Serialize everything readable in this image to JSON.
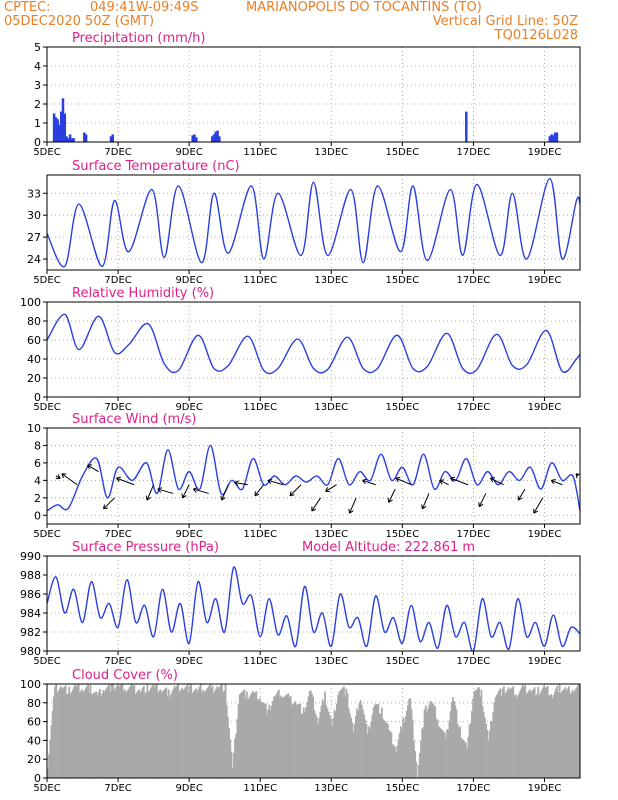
{
  "header": {
    "line1_left": "CPTEC:",
    "coords": "049:41W-09:49S",
    "location": "MARIANOPOLIS DO TOCANTINS (TO)",
    "date": "05DEC2020 50Z (GMT)",
    "grid_note": "Vertical Grid Line: 50Z",
    "run_code": "TQ0126L028"
  },
  "x_ticks": [
    "5DEC",
    "7DEC",
    "9DEC",
    "11DEC",
    "13DEC",
    "15DEC",
    "17DEC",
    "19DEC"
  ],
  "x_tick_days": [
    0,
    2,
    4,
    6,
    8,
    10,
    12,
    14
  ],
  "x_range_days": [
    0,
    15
  ],
  "colors": {
    "line": "#2a3fe0",
    "bar": "#2a3fe0",
    "cloud": "#a9a9a9",
    "arrow": "#000000",
    "title": "#e0208a",
    "header": "#e8802a"
  },
  "chart_data": [
    {
      "type": "bar",
      "title": "Precipitation (mm/h)",
      "ylim": [
        0,
        5
      ],
      "yticks": [
        0,
        1,
        2,
        3,
        4,
        5
      ],
      "grid": true,
      "x_days": [
        0.2,
        0.25,
        0.3,
        0.35,
        0.4,
        0.45,
        0.5,
        0.55,
        0.6,
        0.65,
        0.7,
        0.75,
        1.05,
        1.1,
        1.8,
        1.85,
        4.1,
        4.15,
        4.2,
        4.65,
        4.7,
        4.75,
        4.8,
        4.85,
        11.8,
        14.15,
        14.2,
        14.25,
        14.3,
        14.35
      ],
      "values": [
        1.5,
        1.3,
        1.2,
        0.9,
        1.6,
        2.3,
        1.5,
        0.3,
        0.2,
        0.4,
        0.2,
        0.2,
        0.5,
        0.4,
        0.3,
        0.4,
        0.35,
        0.4,
        0.25,
        0.3,
        0.4,
        0.55,
        0.6,
        0.3,
        1.6,
        0.3,
        0.4,
        0.35,
        0.5,
        0.5
      ]
    },
    {
      "type": "line",
      "title": "Surface Temperature (nC)",
      "ylim": [
        22.5,
        35.5
      ],
      "yticks": [
        24,
        27,
        30,
        33
      ],
      "grid": true,
      "x": [
        0.0,
        0.5,
        0.9,
        1.55,
        1.9,
        2.3,
        2.95,
        3.3,
        3.7,
        4.35,
        4.7,
        5.1,
        5.75,
        6.1,
        6.5,
        7.15,
        7.5,
        7.9,
        8.55,
        8.9,
        9.3,
        9.95,
        10.3,
        10.7,
        11.35,
        11.7,
        12.1,
        12.75,
        13.1,
        13.5,
        14.15,
        14.5,
        14.9,
        15.0
      ],
      "y": [
        27.5,
        23.0,
        31.5,
        23.0,
        32.0,
        25.0,
        33.5,
        24.2,
        34.0,
        23.5,
        33.0,
        24.8,
        34.0,
        24.0,
        33.0,
        24.5,
        34.5,
        24.5,
        33.5,
        23.5,
        34.0,
        25.0,
        34.0,
        23.8,
        33.5,
        24.5,
        34.2,
        24.5,
        33.0,
        24.0,
        35.0,
        24.0,
        32.0,
        31.5
      ]
    },
    {
      "type": "line",
      "title": "Relative Humidity (%)",
      "ylim": [
        0,
        100
      ],
      "yticks": [
        0,
        20,
        40,
        60,
        80,
        100
      ],
      "grid": true,
      "x": [
        0.0,
        0.5,
        0.9,
        1.45,
        1.9,
        2.3,
        2.85,
        3.3,
        3.7,
        4.25,
        4.7,
        5.1,
        5.65,
        6.1,
        6.5,
        7.05,
        7.5,
        7.9,
        8.45,
        8.9,
        9.3,
        9.85,
        10.3,
        10.7,
        11.25,
        11.7,
        12.1,
        12.65,
        13.1,
        13.5,
        14.05,
        14.5,
        14.9,
        15.0
      ],
      "y": [
        60,
        87,
        50,
        85,
        47,
        55,
        77,
        35,
        28,
        65,
        30,
        33,
        64,
        28,
        30,
        61,
        30,
        29,
        63,
        30,
        30,
        65,
        30,
        32,
        67,
        30,
        29,
        66,
        33,
        34,
        70,
        27,
        40,
        45
      ]
    },
    {
      "type": "line",
      "title": "Surface Wind (m/s)",
      "ylim": [
        -1,
        10
      ],
      "yticks": [
        0,
        2,
        4,
        6,
        8,
        10
      ],
      "grid": true,
      "x": [
        0.0,
        0.3,
        0.6,
        1.0,
        1.4,
        1.7,
        2.0,
        2.4,
        2.8,
        3.1,
        3.4,
        3.7,
        4.0,
        4.3,
        4.6,
        4.9,
        5.2,
        5.5,
        5.8,
        6.1,
        6.4,
        6.7,
        7.0,
        7.3,
        7.6,
        7.9,
        8.2,
        8.5,
        8.8,
        9.1,
        9.4,
        9.7,
        10.0,
        10.3,
        10.6,
        10.9,
        11.2,
        11.5,
        11.8,
        12.1,
        12.4,
        12.7,
        13.0,
        13.3,
        13.6,
        13.9,
        14.2,
        14.5,
        14.8,
        15.0
      ],
      "y": [
        0.5,
        1.2,
        0.8,
        4.5,
        6.5,
        2.0,
        5.5,
        4.0,
        6.0,
        2.5,
        7.5,
        3.0,
        5.0,
        3.0,
        8.0,
        2.5,
        4.0,
        3.0,
        6.5,
        3.5,
        4.5,
        3.5,
        4.5,
        3.8,
        4.5,
        3.5,
        6.5,
        3.5,
        5.0,
        4.0,
        7.0,
        4.0,
        5.5,
        3.5,
        7.0,
        3.0,
        5.0,
        4.0,
        6.5,
        3.5,
        5.0,
        3.5,
        5.0,
        4.0,
        5.5,
        3.0,
        6.0,
        4.0,
        4.5,
        0.5
      ]
    },
    {
      "type": "vector",
      "title": "Surface Wind direction",
      "x_days": [
        0.25,
        0.85,
        1.45,
        1.9,
        2.45,
        3.0,
        3.55,
        4.0,
        4.55,
        5.1,
        5.65,
        6.1,
        6.65,
        7.15,
        7.7,
        8.15,
        8.7,
        9.25,
        9.8,
        10.25,
        10.75,
        11.3,
        11.85,
        12.35,
        12.85,
        13.45,
        13.95,
        14.5,
        14.95
      ],
      "level": [
        4.5,
        3.5,
        5.0,
        2.0,
        3.5,
        3.5,
        2.5,
        3.5,
        2.5,
        3.5,
        3.5,
        3.5,
        3.5,
        3.5,
        2.0,
        3.5,
        2.0,
        3.5,
        3.0,
        3.5,
        2.5,
        3.5,
        3.5,
        2.5,
        3.5,
        3.0,
        2.0,
        3.5,
        4.5
      ],
      "u": [
        0.2,
        -0.7,
        -0.5,
        -0.5,
        -0.8,
        -0.3,
        -0.7,
        -0.3,
        -0.7,
        -0.3,
        -0.6,
        -0.4,
        -0.7,
        -0.5,
        -0.4,
        -0.5,
        -0.3,
        -0.6,
        -0.3,
        -0.7,
        -0.3,
        -0.4,
        -0.8,
        -0.3,
        -0.6,
        -0.3,
        -0.4,
        -0.5,
        -0.1
      ],
      "v": [
        -0.1,
        0.5,
        0.3,
        -0.5,
        0.3,
        -0.7,
        0.2,
        -0.6,
        0.2,
        -0.7,
        0.1,
        -0.5,
        0.2,
        -0.5,
        -0.6,
        -0.3,
        -0.7,
        0.2,
        -0.6,
        0.3,
        -0.7,
        0.2,
        0.3,
        -0.6,
        0.3,
        -0.5,
        -0.7,
        0.2,
        0.1
      ]
    },
    {
      "type": "line",
      "title": "Surface Pressure (hPa)",
      "subtitle": "Model Altitude: 222.861 m",
      "ylim": [
        980,
        990
      ],
      "yticks": [
        980,
        982,
        984,
        986,
        988,
        990
      ],
      "grid": true,
      "x": [
        0.0,
        0.25,
        0.5,
        0.75,
        1.0,
        1.25,
        1.5,
        1.75,
        2.0,
        2.25,
        2.5,
        2.75,
        3.0,
        3.25,
        3.5,
        3.75,
        4.0,
        4.25,
        4.5,
        4.75,
        5.0,
        5.25,
        5.5,
        5.75,
        6.0,
        6.25,
        6.5,
        6.75,
        7.0,
        7.25,
        7.5,
        7.75,
        8.0,
        8.25,
        8.5,
        8.75,
        9.0,
        9.25,
        9.5,
        9.75,
        10.0,
        10.25,
        10.5,
        10.75,
        11.0,
        11.25,
        11.5,
        11.75,
        12.0,
        12.25,
        12.5,
        12.75,
        13.0,
        13.25,
        13.5,
        13.75,
        14.0,
        14.25,
        14.5,
        14.75,
        15.0
      ],
      "y": [
        985.0,
        987.8,
        984.0,
        986.5,
        983.0,
        987.3,
        983.5,
        985.0,
        982.5,
        987.5,
        983.0,
        984.8,
        981.5,
        986.5,
        982.0,
        985.0,
        980.8,
        987.3,
        983.0,
        985.5,
        982.0,
        988.8,
        985.0,
        985.8,
        981.5,
        985.5,
        981.7,
        983.7,
        980.5,
        986.8,
        982.0,
        984.0,
        980.5,
        986.0,
        982.5,
        983.5,
        980.5,
        985.8,
        982.0,
        983.5,
        980.8,
        984.8,
        981.0,
        983.0,
        980.3,
        984.8,
        981.5,
        983.0,
        980.0,
        985.5,
        981.5,
        983.0,
        980.2,
        985.5,
        981.5,
        983.0,
        980.5,
        983.8,
        980.5,
        982.5,
        981.8
      ]
    },
    {
      "type": "area",
      "title": "Cloud Cover (%)",
      "ylim": [
        0,
        100
      ],
      "yticks": [
        0,
        20,
        40,
        60,
        80,
        100
      ],
      "grid": true,
      "x": [
        0.0,
        0.2,
        0.4,
        0.6,
        0.8,
        1.0,
        1.2,
        1.4,
        1.6,
        1.8,
        2.0,
        2.2,
        2.4,
        2.6,
        2.8,
        3.0,
        3.2,
        3.4,
        3.6,
        3.8,
        4.0,
        4.2,
        4.4,
        4.6,
        4.8,
        5.0,
        5.2,
        5.4,
        5.6,
        5.8,
        6.0,
        6.2,
        6.4,
        6.6,
        6.8,
        7.0,
        7.2,
        7.4,
        7.6,
        7.8,
        8.0,
        8.2,
        8.4,
        8.6,
        8.8,
        9.0,
        9.2,
        9.4,
        9.6,
        9.8,
        10.0,
        10.2,
        10.4,
        10.6,
        10.8,
        11.0,
        11.2,
        11.4,
        11.6,
        11.8,
        12.0,
        12.2,
        12.4,
        12.6,
        12.8,
        13.0,
        13.2,
        13.4,
        13.6,
        13.8,
        14.0,
        14.2,
        14.4,
        14.6,
        14.8,
        15.0
      ],
      "y": [
        15,
        95,
        97,
        92,
        96,
        94,
        95,
        88,
        96,
        97,
        98,
        96,
        95,
        93,
        95,
        96,
        94,
        90,
        96,
        97,
        95,
        93,
        96,
        94,
        97,
        96,
        10,
        92,
        88,
        90,
        85,
        70,
        88,
        90,
        84,
        80,
        70,
        92,
        60,
        88,
        55,
        96,
        92,
        50,
        88,
        45,
        80,
        70,
        50,
        30,
        60,
        85,
        5,
        70,
        82,
        60,
        40,
        88,
        50,
        30,
        95,
        90,
        40,
        90,
        92,
        95,
        90,
        95,
        93,
        92,
        95,
        88,
        96,
        93,
        95,
        96
      ]
    }
  ]
}
